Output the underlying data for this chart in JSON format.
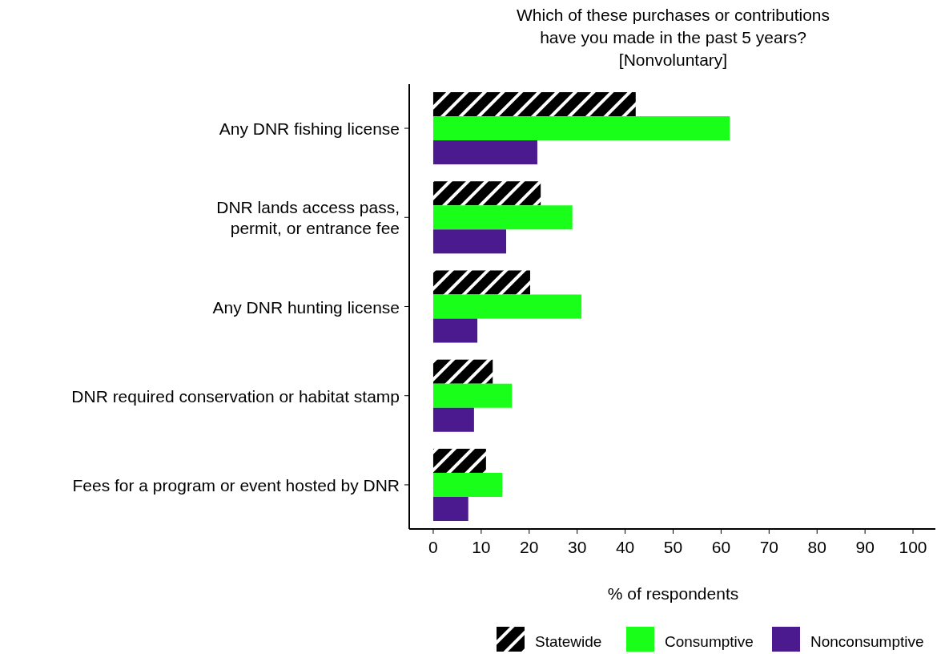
{
  "chart_data": {
    "type": "bar",
    "orientation": "horizontal",
    "title": "Which of these purchases or contributions\nhave you made in the past 5 years?\n[Nonvoluntary]",
    "xlabel": "% of respondents",
    "categories": [
      "Any DNR fishing license",
      "DNR lands access pass,\npermit, or entrance fee",
      "Any DNR hunting license",
      "DNR required conservation or habitat stamp",
      "Fees for a program or event hosted by DNR"
    ],
    "series": [
      {
        "name": "Statewide",
        "color": "#000000",
        "values": [
          42.2,
          22.4,
          20.2,
          12.4,
          11.0
        ]
      },
      {
        "name": "Consumptive",
        "color": "#1aff1a",
        "values": [
          61.8,
          29.0,
          30.9,
          16.4,
          14.4
        ]
      },
      {
        "name": "Nonconsumptive",
        "color": "#4b1a8f",
        "values": [
          21.7,
          15.2,
          9.2,
          8.5,
          7.3
        ]
      }
    ],
    "xlim": [
      -5,
      105
    ],
    "xticks": [
      0,
      10,
      20,
      30,
      40,
      50,
      60,
      70,
      80,
      90,
      100
    ],
    "grid": false,
    "legend": "bottom"
  }
}
